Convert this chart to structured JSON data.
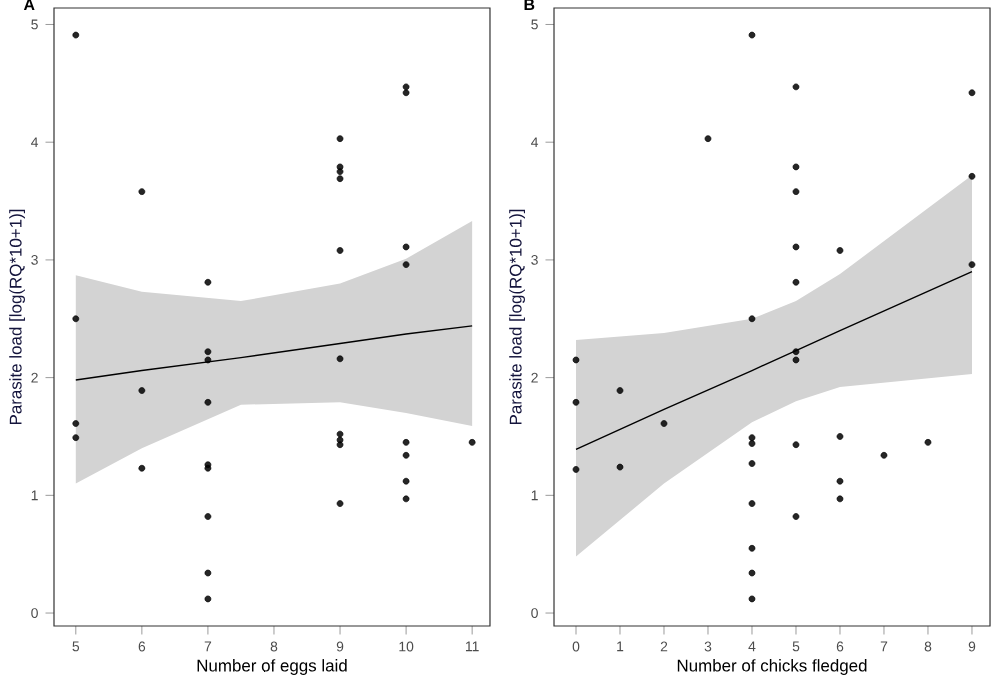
{
  "chart_data": [
    {
      "type": "scatter",
      "title": "A",
      "xlabel": "Number of eggs laid",
      "ylabel": "Parasite load [log(RQ*10+1)]",
      "xlim": [
        4.67,
        11.27
      ],
      "ylim": [
        -0.11,
        5.14
      ],
      "xticks": [
        5,
        6,
        7,
        8,
        9,
        10,
        11
      ],
      "yticks": [
        0,
        1,
        2,
        3,
        4,
        5
      ],
      "grid": false,
      "series": [
        {
          "marker": "circle",
          "color": "#000000",
          "x": [
            5,
            5,
            5,
            5,
            6,
            6,
            6,
            7,
            7,
            7,
            7,
            7,
            7,
            7,
            7,
            7,
            9,
            9,
            9,
            9,
            9,
            9,
            9,
            9,
            9,
            9,
            10,
            10,
            10,
            10,
            10,
            10,
            10,
            10,
            11
          ],
          "values": [
            4.91,
            2.5,
            1.61,
            1.49,
            3.58,
            1.89,
            1.23,
            2.81,
            2.22,
            2.15,
            1.79,
            1.26,
            1.23,
            0.82,
            0.34,
            0.12,
            4.03,
            3.79,
            3.75,
            3.69,
            3.08,
            2.16,
            1.52,
            1.47,
            1.43,
            0.93,
            4.47,
            4.42,
            3.11,
            2.96,
            1.45,
            1.34,
            1.12,
            0.97,
            1.45
          ]
        },
        {
          "type": "line",
          "marker": "none",
          "color": "#000000",
          "x": [
            5,
            6,
            7.5,
            9,
            10,
            11
          ],
          "values": [
            1.98,
            2.06,
            2.17,
            2.29,
            2.37,
            2.44
          ],
          "lower": [
            1.1,
            1.4,
            1.77,
            1.79,
            1.7,
            1.59
          ],
          "upper": [
            2.87,
            2.73,
            2.65,
            2.8,
            3.01,
            3.33
          ]
        }
      ]
    },
    {
      "type": "scatter",
      "title": "B",
      "xlabel": "Number of chicks fledged",
      "ylabel": "Parasite load [log(RQ*10+1)]",
      "xlim": [
        -0.5,
        9.41
      ],
      "ylim": [
        -0.11,
        5.14
      ],
      "xticks": [
        0,
        1,
        2,
        3,
        4,
        5,
        6,
        7,
        8,
        9
      ],
      "yticks": [
        0,
        1,
        2,
        3,
        4,
        5
      ],
      "grid": false,
      "series": [
        {
          "marker": "circle",
          "color": "#000000",
          "x": [
            0,
            0,
            0,
            1,
            1,
            2,
            3,
            4,
            4,
            4,
            4,
            4,
            4,
            4,
            4,
            4,
            5,
            5,
            5,
            5,
            5,
            5,
            5,
            5,
            5,
            6,
            6,
            6,
            6,
            7,
            8,
            9,
            9,
            9
          ],
          "values": [
            2.15,
            1.79,
            1.22,
            1.89,
            1.24,
            1.61,
            4.03,
            4.91,
            2.5,
            1.49,
            1.44,
            1.27,
            0.93,
            0.55,
            0.34,
            0.12,
            4.47,
            3.79,
            3.58,
            3.11,
            2.81,
            2.22,
            2.15,
            1.43,
            0.82,
            3.08,
            1.5,
            1.12,
            0.97,
            1.34,
            1.45,
            4.42,
            3.71,
            2.96
          ]
        },
        {
          "type": "line",
          "marker": "none",
          "color": "#000000",
          "x": [
            0,
            2,
            4,
            5,
            6,
            9
          ],
          "values": [
            1.39,
            1.73,
            2.06,
            2.23,
            2.4,
            2.9
          ],
          "lower": [
            0.48,
            1.1,
            1.62,
            1.8,
            1.92,
            2.03
          ],
          "upper": [
            2.32,
            2.38,
            2.5,
            2.65,
            2.88,
            3.72
          ]
        }
      ]
    }
  ]
}
